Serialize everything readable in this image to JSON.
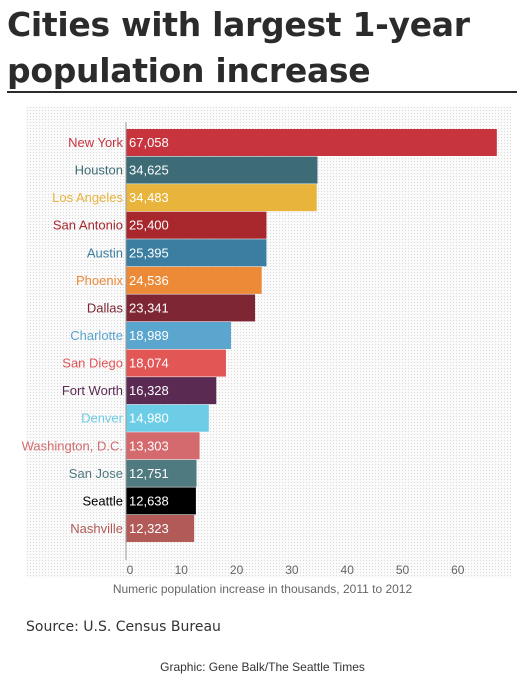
{
  "title": "Cities with largest 1-year population increase",
  "source": "Source: U.S. Census Bureau",
  "credit": "Graphic: Gene Balk/The Seattle Times",
  "chart_data": {
    "type": "bar",
    "orientation": "horizontal",
    "title": "Cities with largest 1-year population increase",
    "xlabel": "Numeric population increase in thousands, 2011 to 2012",
    "ylabel": "",
    "xlim": [
      0,
      65
    ],
    "xticks": [
      0,
      10,
      20,
      30,
      40,
      50,
      60
    ],
    "grid": false,
    "categories": [
      "New York",
      "Houston",
      "Los Angeles",
      "San Antonio",
      "Austin",
      "Phoenix",
      "Dallas",
      "Charlotte",
      "San Diego",
      "Fort Worth",
      "Denver",
      "Washington, D.C.",
      "San Jose",
      "Seattle",
      "Nashville"
    ],
    "values": [
      67058,
      34625,
      34483,
      25400,
      25395,
      24536,
      23341,
      18989,
      18074,
      16328,
      14980,
      13303,
      12751,
      12638,
      12323
    ],
    "value_labels": [
      "67,058",
      "34,625",
      "34,483",
      "25,400",
      "25,395",
      "24,536",
      "23,341",
      "18,989",
      "18,074",
      "16,328",
      "14,980",
      "13,303",
      "12,751",
      "12,638",
      "12,323"
    ],
    "colors": [
      "#c8343e",
      "#3d6b76",
      "#e8b43c",
      "#a8272c",
      "#3b7ea1",
      "#ec8a38",
      "#7e2634",
      "#5aa6cf",
      "#e25656",
      "#5a2a53",
      "#6dcde6",
      "#d46a6e",
      "#4e7a80",
      "#000000",
      "#b25a58"
    ]
  }
}
